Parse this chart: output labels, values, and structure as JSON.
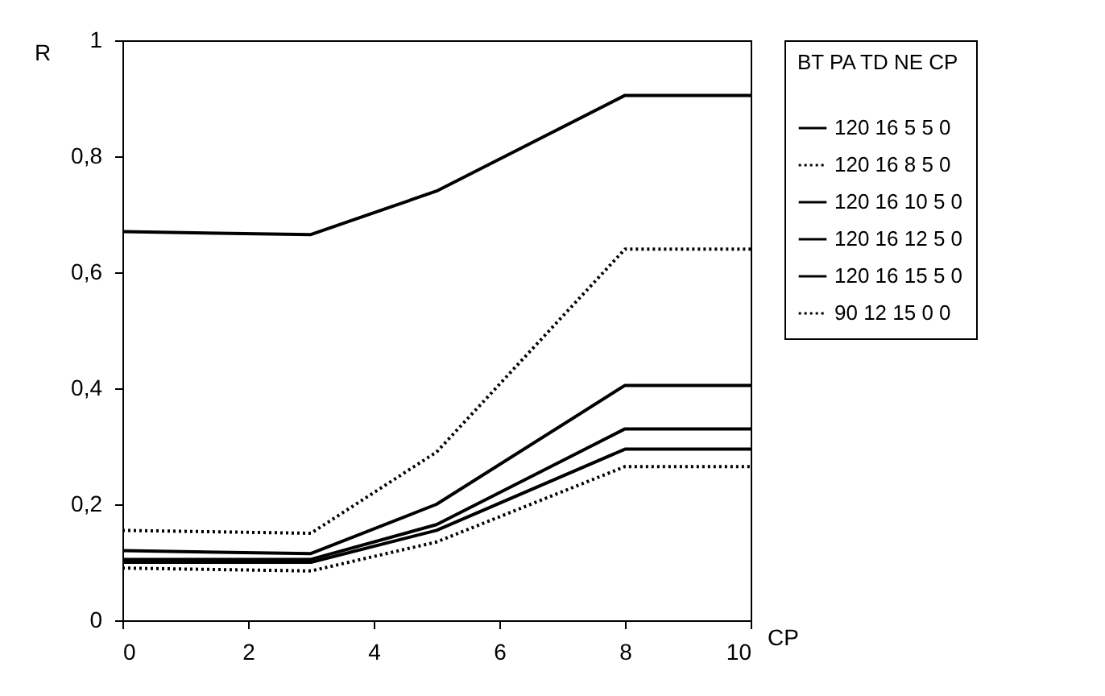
{
  "chart_data": {
    "type": "line",
    "xlabel": "CP",
    "ylabel": "R",
    "legend_title": "BT PA TD NE CP",
    "legend": "right",
    "grid": false,
    "marker": "none",
    "x": [
      0,
      3,
      5,
      8,
      10
    ],
    "xlim": [
      0,
      10
    ],
    "xticks": [
      0,
      2,
      4,
      6,
      8,
      10
    ],
    "ylim": [
      0,
      1
    ],
    "yticks": [
      0,
      {
        "value": 0.2,
        "label": "0,2"
      },
      {
        "value": 0.4,
        "label": "0,4"
      },
      {
        "value": 0.6,
        "label": "0,6"
      },
      {
        "value": 0.8,
        "label": "0,8"
      },
      1
    ],
    "series": [
      {
        "name": "120 16 5 5 0",
        "color": "#000000",
        "line_style": "solid",
        "values": [
          0.67,
          0.665,
          0.74,
          0.905,
          0.905
        ]
      },
      {
        "name": "120 16 8 5 0",
        "color": "#000000",
        "line_style": "dotted",
        "values": [
          0.155,
          0.15,
          0.29,
          0.64,
          0.64
        ]
      },
      {
        "name": "120 16 10 5 0",
        "color": "#000000",
        "line_style": "solid",
        "values": [
          0.12,
          0.115,
          0.2,
          0.405,
          0.405
        ]
      },
      {
        "name": "120 16 12 5 0",
        "color": "#000000",
        "line_style": "solid",
        "values": [
          0.105,
          0.105,
          0.165,
          0.33,
          0.33
        ]
      },
      {
        "name": "120 16 15 5 0",
        "color": "#000000",
        "line_style": "solid",
        "values": [
          0.1,
          0.1,
          0.155,
          0.295,
          0.295
        ]
      },
      {
        "name": "90 12 15 0 0",
        "color": "#000000",
        "line_style": "dotted",
        "values": [
          0.09,
          0.085,
          0.135,
          0.265,
          0.265
        ]
      }
    ]
  }
}
